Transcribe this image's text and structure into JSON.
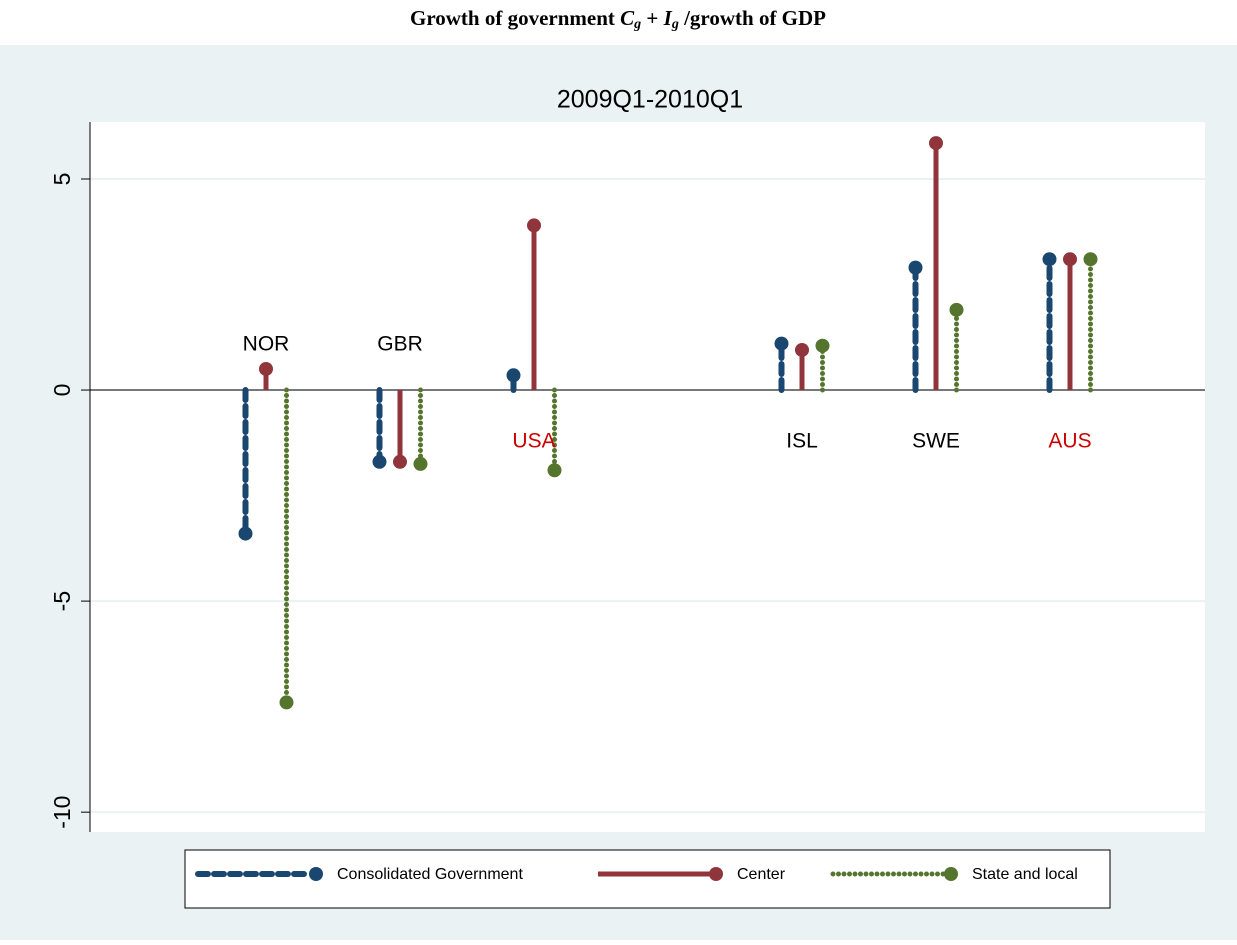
{
  "chart_data": {
    "type": "lollipop",
    "title_parts": [
      "Growth of government ",
      "C",
      "g",
      " + ",
      "I",
      "g",
      " /growth of GDP"
    ],
    "subtitle": "2009Q1-2010Q1",
    "categories": [
      "NOR",
      "GBR",
      "USA",
      null,
      "ISL",
      "SWE",
      "AUS"
    ],
    "category_label_colors": [
      "#000000",
      "#000000",
      "#cc0000",
      null,
      "#000000",
      "#000000",
      "#cc0000"
    ],
    "category_label_side": [
      "above",
      "above",
      "below",
      null,
      "below",
      "below",
      "below"
    ],
    "series": [
      {
        "name": "Consolidated Government",
        "color": "#1a476f",
        "style": "dashed",
        "values": [
          -3.4,
          -1.7,
          0.35,
          null,
          1.1,
          2.9,
          3.1
        ]
      },
      {
        "name": "Center",
        "color": "#90353b",
        "style": "solid",
        "values": [
          0.5,
          -1.7,
          3.9,
          null,
          0.95,
          5.85,
          3.1
        ]
      },
      {
        "name": "State and local",
        "color": "#55752f",
        "style": "dotted",
        "values": [
          -7.4,
          -1.75,
          -1.9,
          null,
          1.05,
          1.9,
          3.1
        ]
      }
    ],
    "ylim": [
      -10.47,
      6.35
    ],
    "yticks": [
      -10,
      -5,
      0,
      5
    ],
    "grid": true,
    "legend": "bottom"
  }
}
